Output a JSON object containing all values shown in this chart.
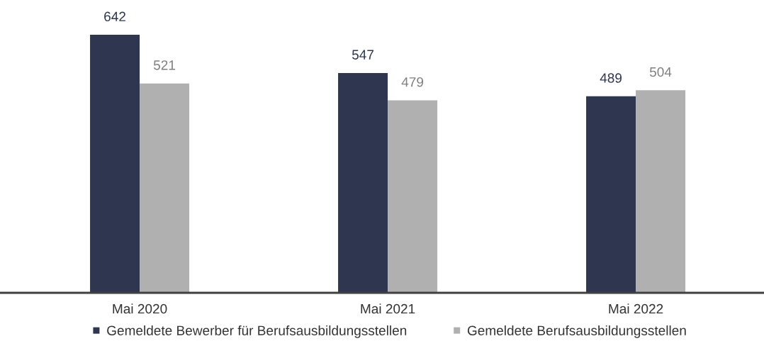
{
  "chart_data": {
    "type": "bar",
    "categories": [
      "Mai 2020",
      "Mai 2021",
      "Mai 2022"
    ],
    "series": [
      {
        "name": "Gemeldete Bewerber für Berufsausbildungsstellen",
        "color": "#2e374f",
        "values": [
          642,
          547,
          489
        ]
      },
      {
        "name": "Gemeldete Berufsausbildungsstellen",
        "color": "#b0b0b0",
        "values": [
          521,
          479,
          504
        ]
      }
    ],
    "tick_labels": "x",
    "data_labels": true,
    "legend": "bottom",
    "grid": false
  }
}
